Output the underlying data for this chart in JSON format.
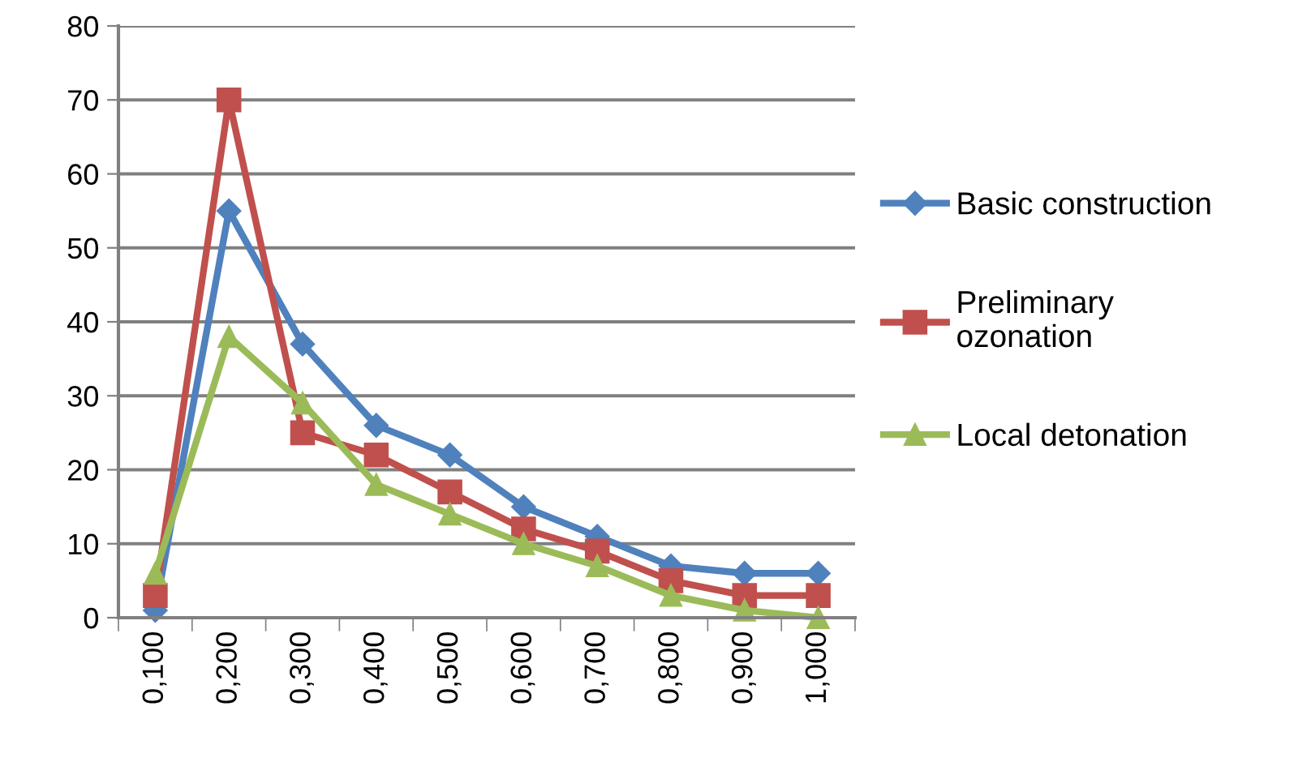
{
  "chart_data": {
    "type": "line",
    "categories": [
      "0,100",
      "0,200",
      "0,300",
      "0,400",
      "0,500",
      "0,600",
      "0,700",
      "0,800",
      "0,900",
      "1,000"
    ],
    "series": [
      {
        "name": "Basic construction",
        "color": "#4f81bd",
        "marker": "diamond",
        "values": [
          1,
          55,
          37,
          26,
          22,
          15,
          11,
          7,
          6,
          6
        ]
      },
      {
        "name": "Preliminary\nozonation",
        "color": "#c0504d",
        "marker": "square",
        "values": [
          3,
          70,
          25,
          22,
          17,
          12,
          9,
          5,
          3,
          3
        ]
      },
      {
        "name": "Local detonation",
        "color": "#9bbb59",
        "marker": "triangle",
        "values": [
          6,
          38,
          29,
          18,
          14,
          10,
          7,
          3,
          1,
          0
        ]
      }
    ],
    "ylim": [
      0,
      80
    ],
    "yticks": [
      0,
      10,
      20,
      30,
      40,
      50,
      60,
      70,
      80
    ],
    "grid": "y",
    "legend": "right"
  }
}
